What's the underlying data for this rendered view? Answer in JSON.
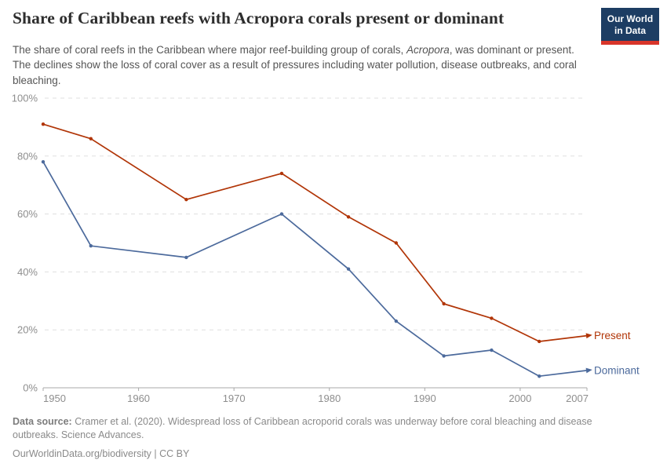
{
  "header": {
    "title": "Share of Caribbean reefs with Acropora corals present or dominant",
    "logo": {
      "line1": "Our World",
      "line2": "in Data",
      "bg_color": "#1d3d63",
      "accent_color": "#d8352a"
    },
    "subtitle_parts": [
      {
        "text": "The share of coral reefs in the Caribbean where major reef-building group of corals, ",
        "italic": false
      },
      {
        "text": "Acropora",
        "italic": true
      },
      {
        "text": ", was dominant or present. The declines show the loss of coral cover as a result of pressures including water pollution, disease outbreaks, and coral bleaching.",
        "italic": false
      }
    ]
  },
  "chart_data": {
    "type": "line",
    "x": [
      1950,
      1955,
      1965,
      1975,
      1982,
      1987,
      1992,
      1997,
      2002,
      2007
    ],
    "series": [
      {
        "name": "Present",
        "color": "#B13507",
        "values": [
          91,
          86,
          65,
          74,
          59,
          50,
          29,
          24,
          16,
          18
        ]
      },
      {
        "name": "Dominant",
        "color": "#4C6A9C",
        "values": [
          78,
          49,
          45,
          60,
          41,
          23,
          11,
          13,
          4,
          6
        ]
      }
    ],
    "xlim": [
      1950,
      2007
    ],
    "ylim": [
      0,
      100
    ],
    "xticks": [
      1950,
      1960,
      1970,
      1980,
      1990,
      2000,
      2007
    ],
    "yticks": [
      0,
      20,
      40,
      60,
      80,
      100
    ],
    "ytick_suffix": "%",
    "grid": "horizontal-dashed",
    "grid_color": "#dfdfdf",
    "axis_color": "#a8a8a8",
    "legend_position": "end-of-line"
  },
  "footer": {
    "source_label": "Data source:",
    "source_text": " Cramer et al. (2020). Widespread loss of Caribbean acroporid corals was underway before coral bleaching and disease outbreaks. Science Advances.",
    "citation_link": "OurWorldinData.org/biodiversity",
    "citation_separator": " | ",
    "citation_license": "CC BY"
  }
}
